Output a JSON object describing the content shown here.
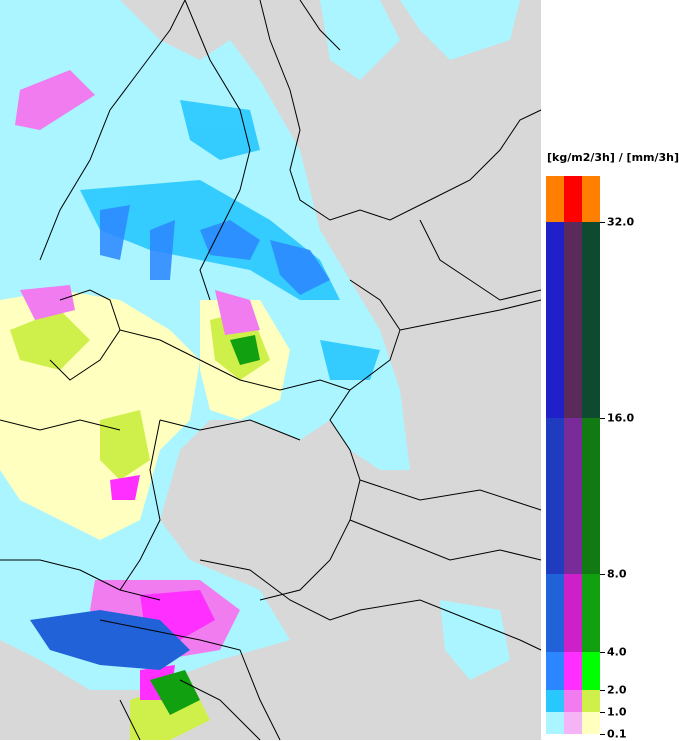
{
  "map": {
    "region": "Northern and Central Europe",
    "background_color": "#d8d8d8",
    "border_color": "#000000"
  },
  "legend": {
    "title": "[kg/m2/3h] / [mm/3h]",
    "labels": [
      "0.1",
      "1.0",
      "2.0",
      "4.0",
      "8.0",
      "16.0",
      "32.0"
    ],
    "bands": [
      {
        "min": 0.1,
        "colors": [
          "#aaf5ff",
          "#f5b4f5",
          "#ffffc0"
        ]
      },
      {
        "min": 1.0,
        "colors": [
          "#28c8ff",
          "#f07cf0",
          "#cff04a"
        ]
      },
      {
        "min": 2.0,
        "colors": [
          "#2b86ff",
          "#ff30ff",
          "#00ff00"
        ]
      },
      {
        "min": 4.0,
        "colors": [
          "#2262d8",
          "#cc20c8",
          "#10a010"
        ]
      },
      {
        "min": 8.0,
        "colors": [
          "#1f3cc0",
          "#7a2b9a",
          "#127a12"
        ]
      },
      {
        "min": 16.0,
        "colors": [
          "#2020c8",
          "#5a2a5a",
          "#0d4a30"
        ]
      },
      {
        "min": 32.0,
        "colors": [
          "#ff8000",
          "#ff0000",
          "#ff8000"
        ]
      }
    ]
  }
}
